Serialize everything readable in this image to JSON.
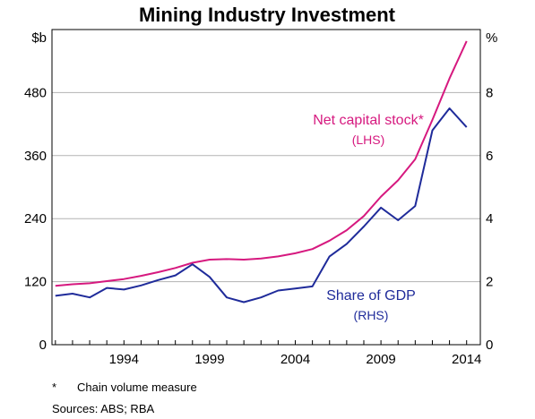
{
  "chart_data": {
    "type": "line",
    "title": "Mining Industry Investment",
    "left_axis": {
      "unit": "$b",
      "ticks": [
        "0",
        "120",
        "240",
        "360",
        "480"
      ],
      "tick_values": [
        0,
        120,
        240,
        360,
        480
      ],
      "ylim": [
        0,
        600
      ]
    },
    "right_axis": {
      "unit": "%",
      "ticks": [
        "0",
        "2",
        "4",
        "6",
        "8"
      ],
      "tick_values": [
        0,
        2,
        4,
        6,
        8
      ],
      "ylim": [
        0,
        10
      ]
    },
    "x_axis": {
      "ticks": [
        "1994",
        "1999",
        "2004",
        "2009",
        "2014"
      ],
      "tick_values": [
        1994,
        1999,
        2004,
        2009,
        2014
      ],
      "xlim": [
        1989.8,
        2014.8
      ]
    },
    "grid": true,
    "series": [
      {
        "name": "Net capital stock*",
        "axis_note": "(LHS)",
        "axis": "left",
        "color": "#d6197f",
        "x": [
          1990,
          1991,
          1992,
          1993,
          1994,
          1995,
          1996,
          1997,
          1998,
          1999,
          2000,
          2001,
          2002,
          2003,
          2004,
          2005,
          2006,
          2007,
          2008,
          2009,
          2010,
          2011,
          2012,
          2013,
          2014
        ],
        "values": [
          112,
          115,
          117,
          121,
          125,
          131,
          138,
          146,
          156,
          162,
          163,
          162,
          164,
          168,
          174,
          182,
          198,
          218,
          245,
          282,
          313,
          353,
          428,
          507,
          578
        ]
      },
      {
        "name": "Share of GDP",
        "axis_note": "(RHS)",
        "axis": "right",
        "color": "#1f2b9a",
        "x": [
          1990,
          1991,
          1992,
          1993,
          1994,
          1995,
          1996,
          1997,
          1998,
          1999,
          2000,
          2001,
          2002,
          2003,
          2004,
          2005,
          2006,
          2007,
          2008,
          2009,
          2010,
          2011,
          2012,
          2013,
          2014
        ],
        "values": [
          1.55,
          1.62,
          1.5,
          1.8,
          1.75,
          1.88,
          2.05,
          2.2,
          2.55,
          2.15,
          1.5,
          1.35,
          1.5,
          1.72,
          1.78,
          1.85,
          2.8,
          3.2,
          3.75,
          4.35,
          3.95,
          4.4,
          6.8,
          7.5,
          6.9
        ]
      }
    ],
    "footnote_mark": "*",
    "footnote": "Chain volume measure",
    "sources": "Sources:  ABS; RBA"
  }
}
